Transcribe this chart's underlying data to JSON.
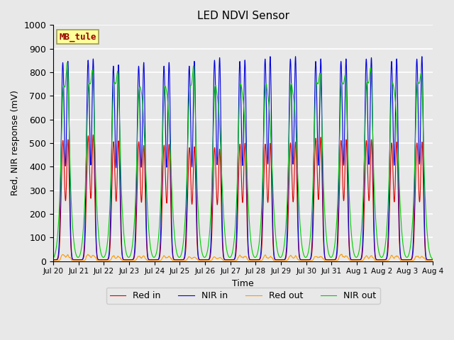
{
  "title": "LED NDVI Sensor",
  "xlabel": "Time",
  "ylabel": "Red, NIR response (mV)",
  "ylim": [
    0,
    1000
  ],
  "xlim": [
    0,
    15
  ],
  "annotation_text": "MB_tule",
  "plot_bg_color": "#e8e8e8",
  "fig_bg_color": "#e8e8e8",
  "grid_color": "#ffffff",
  "colors": {
    "red_in": "#dd0000",
    "nir_in": "#0000dd",
    "red_out": "#ff9900",
    "nir_out": "#00cc00"
  },
  "legend_labels": [
    "Red in",
    "NIR in",
    "Red out",
    "NIR out"
  ],
  "x_tick_labels": [
    "Jul 20",
    "Jul 21",
    "Jul 22",
    "Jul 23",
    "Jul 24",
    "Jul 25",
    "Jul 26",
    "Jul 27",
    "Jul 28",
    "Jul 29",
    "Jul 30",
    "Jul 31",
    "Aug 1",
    "Aug 2",
    "Aug 3",
    "Aug 4"
  ],
  "num_days": 15,
  "nir_out_peak1": [
    840,
    850,
    855,
    830,
    835,
    830,
    845,
    855,
    855,
    855,
    855,
    855,
    860,
    855,
    860
  ],
  "nir_out_peak2": [
    920,
    885,
    880,
    700,
    695,
    905,
    685,
    690,
    690,
    700,
    870,
    860,
    895,
    705,
    870
  ],
  "nir_out_shoulder": [
    680,
    700,
    700,
    700,
    700,
    700,
    680,
    680,
    680,
    680,
    700,
    700,
    700,
    700,
    700
  ],
  "nir_in_peak1": [
    840,
    850,
    825,
    825,
    825,
    825,
    850,
    845,
    855,
    855,
    845,
    845,
    855,
    845,
    855
  ],
  "nir_in_peak2": [
    840,
    850,
    825,
    835,
    835,
    840,
    855,
    845,
    860,
    860,
    850,
    850,
    855,
    850,
    860
  ],
  "red_in_peak1": [
    510,
    530,
    505,
    505,
    490,
    480,
    480,
    495,
    495,
    500,
    520,
    510,
    510,
    500,
    500
  ],
  "red_in_peak2": [
    510,
    530,
    505,
    485,
    490,
    480,
    470,
    495,
    495,
    500,
    520,
    510,
    510,
    500,
    500
  ],
  "red_out_peak": [
    25,
    25,
    20,
    20,
    20,
    15,
    15,
    20,
    20,
    20,
    20,
    25,
    20,
    20,
    20
  ]
}
